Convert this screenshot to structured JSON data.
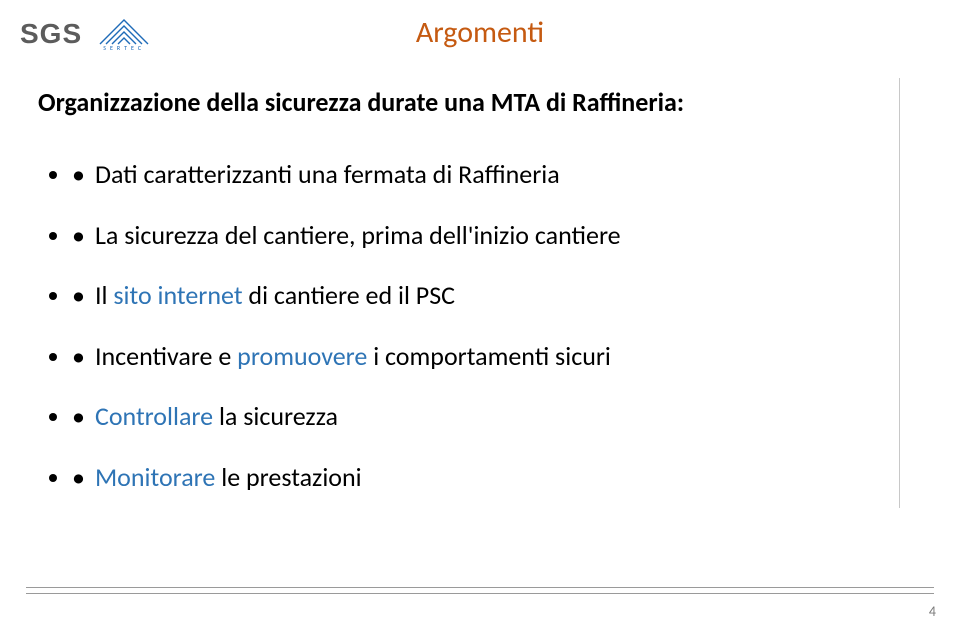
{
  "logos": {
    "sgs_text": "SGS",
    "sertec_label": "SERTEC",
    "sertec_stroke": "#1e6bb8"
  },
  "title": {
    "text": "Argomenti",
    "color": "#c55a11"
  },
  "heading": "Organizzazione della sicurezza durate una MTA di Raffineria:",
  "highlight_color": "#2e74b5",
  "bullets": [
    {
      "segments": [
        {
          "text": "Dati caratterizzanti una fermata di Raffineria"
        }
      ]
    },
    {
      "segments": [
        {
          "text": "La sicurezza del cantiere, prima dell'inizio cantiere"
        }
      ]
    },
    {
      "segments": [
        {
          "text": "Il "
        },
        {
          "text": "sito internet ",
          "hl": true
        },
        {
          "text": "di cantiere ed il PSC"
        }
      ]
    },
    {
      "segments": [
        {
          "text": "Incentivare e "
        },
        {
          "text": "promuovere ",
          "hl": true
        },
        {
          "text": "i comportamenti sicuri"
        }
      ]
    },
    {
      "segments": [
        {
          "text": "Controllare ",
          "hl": true
        },
        {
          "text": "la sicurezza"
        }
      ]
    },
    {
      "segments": [
        {
          "text": "Monitorare",
          "hl": true
        },
        {
          "text": " le prestazioni"
        }
      ]
    }
  ],
  "page_number": "4"
}
